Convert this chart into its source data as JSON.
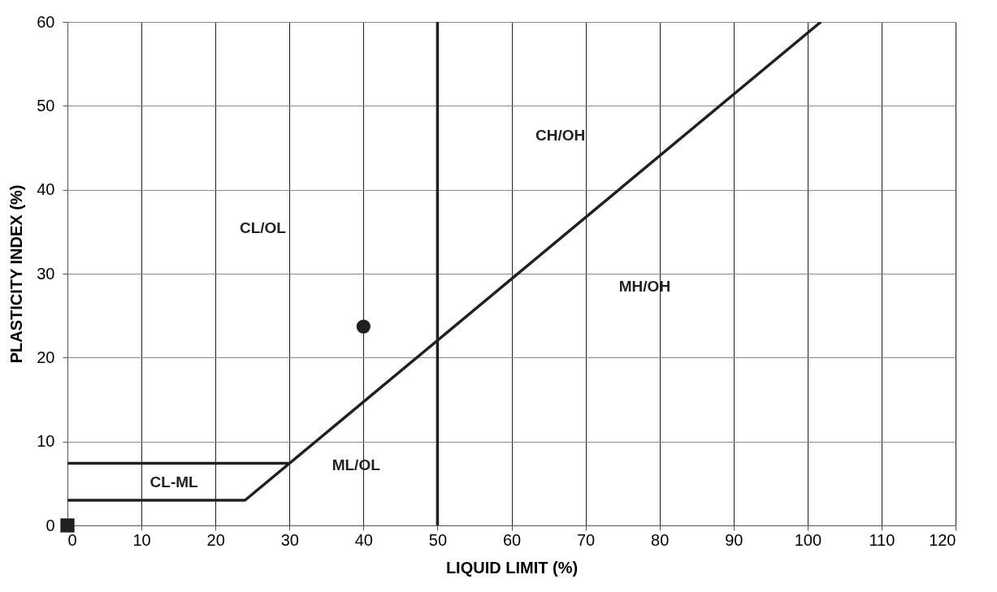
{
  "chart_data": {
    "type": "line",
    "xlabel": "LIQUID LIMIT (%)",
    "ylabel": "PLASTICITY INDEX (%)",
    "xlim": [
      0,
      120
    ],
    "xticks": [
      0,
      10,
      20,
      30,
      40,
      50,
      60,
      70,
      80,
      90,
      100,
      110,
      120
    ],
    "ylim": [
      0,
      60
    ],
    "yticks": [
      0,
      10,
      20,
      30,
      40,
      50,
      60
    ],
    "grid": true,
    "series": [
      {
        "color": "#231f20",
        "x": [
          0,
          24,
          101.8
        ],
        "values": [
          3,
          3,
          60
        ],
        "marker": "none"
      },
      {
        "color": "#231f20",
        "x": [
          0,
          30
        ],
        "values": [
          7.4,
          7.4
        ],
        "marker": "none"
      },
      {
        "type": "scatter",
        "color": "#231f20",
        "x": [
          40
        ],
        "values": [
          23.7
        ],
        "marker": "circle"
      },
      {
        "type": "scatter",
        "color": "#231f20",
        "x": [
          0
        ],
        "values": [
          0
        ],
        "marker": "square"
      }
    ],
    "ref_lines": [
      {
        "axis": "x",
        "value": 50,
        "color": "#231f20"
      }
    ],
    "annotations": [
      "CL/OL",
      "CH/OH",
      "MH/OH",
      "ML/OL",
      "CL-ML"
    ]
  }
}
